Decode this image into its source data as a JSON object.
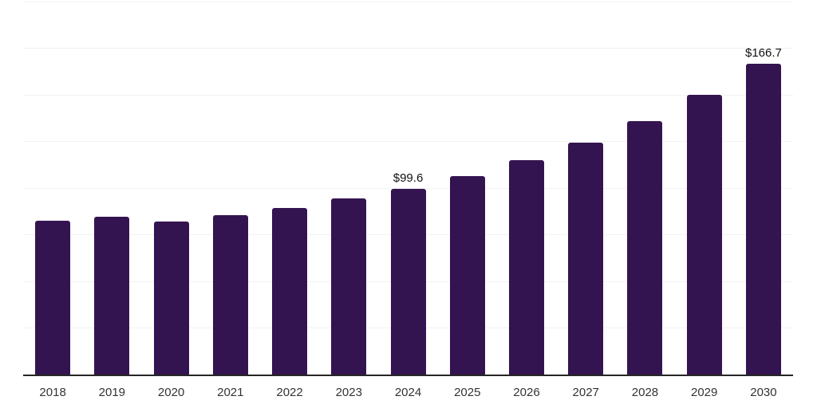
{
  "chart_data": {
    "type": "bar",
    "title": "",
    "xlabel": "",
    "ylabel": "",
    "categories": [
      "2018",
      "2019",
      "2020",
      "2021",
      "2022",
      "2023",
      "2024",
      "2025",
      "2026",
      "2027",
      "2028",
      "2029",
      "2030"
    ],
    "values": [
      82.4,
      84.8,
      82.0,
      85.5,
      89.3,
      94.3,
      99.6,
      106.5,
      114.8,
      124.4,
      136.1,
      149.8,
      166.7
    ],
    "point_labels": [
      "",
      "",
      "",
      "",
      "",
      "",
      "$99.6",
      "",
      "",
      "",
      "",
      "",
      "$166.7"
    ],
    "ylim": [
      0,
      200
    ],
    "grid_step": 25,
    "grid": true,
    "legend": false,
    "y_axis_labels_visible": false,
    "colors": {
      "bar": "#341450",
      "grid": "#f2f2f2",
      "axis": "#262626",
      "tick_label": "#333333",
      "value_label": "#111111",
      "background": "#ffffff"
    }
  }
}
